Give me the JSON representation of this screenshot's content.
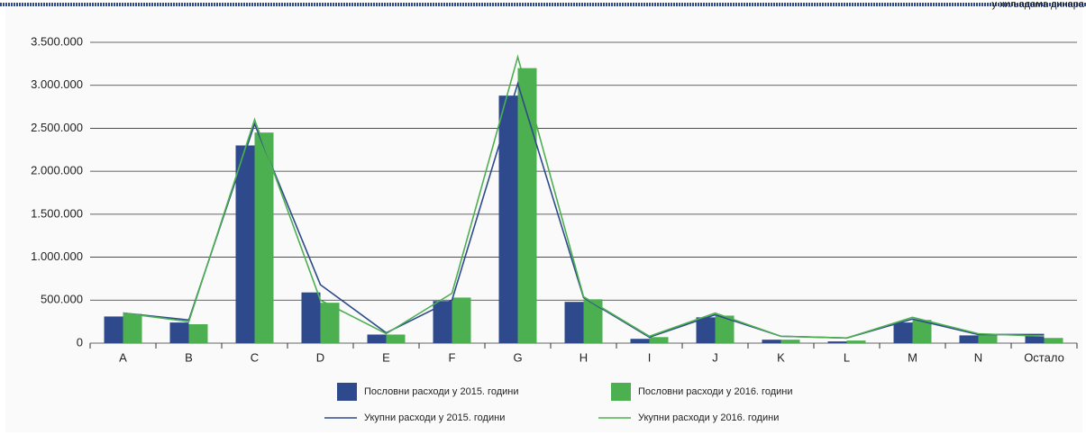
{
  "chart_data": {
    "type": "bar",
    "unit_note": "у хиљадама динара",
    "categories": [
      "A",
      "B",
      "C",
      "D",
      "E",
      "F",
      "G",
      "H",
      "I",
      "J",
      "K",
      "L",
      "M",
      "N",
      "Остало"
    ],
    "series": [
      {
        "name": "Пословни расходи у  2015. години",
        "type": "bar",
        "color": "#2e4a8c",
        "values": [
          310000,
          240000,
          2300000,
          590000,
          100000,
          490000,
          2880000,
          480000,
          50000,
          300000,
          40000,
          20000,
          240000,
          90000,
          90000
        ]
      },
      {
        "name": "Пословни расходи у  2016. години",
        "type": "bar",
        "color": "#4caf50",
        "values": [
          340000,
          220000,
          2450000,
          470000,
          100000,
          530000,
          3200000,
          510000,
          70000,
          320000,
          40000,
          30000,
          270000,
          110000,
          60000
        ]
      },
      {
        "name": "Укупни расходи у 2015. години",
        "type": "line",
        "color": "#2e4a8c",
        "values": [
          350000,
          270000,
          2550000,
          680000,
          120000,
          500000,
          3020000,
          530000,
          70000,
          330000,
          80000,
          60000,
          280000,
          100000,
          100000
        ]
      },
      {
        "name": "Укупни расходи у 2016. години",
        "type": "line",
        "color": "#4caf50",
        "values": [
          350000,
          250000,
          2600000,
          500000,
          110000,
          580000,
          3330000,
          540000,
          80000,
          350000,
          80000,
          60000,
          300000,
          110000,
          80000
        ]
      }
    ],
    "ylim": [
      0,
      3500000
    ],
    "yticks": [
      0,
      {
        "value": 500000,
        "label": "500.000"
      },
      {
        "value": 1000000,
        "label": "1.000.000"
      },
      {
        "value": 1500000,
        "label": "1.500.000"
      },
      {
        "value": 2000000,
        "label": "2.000.000"
      },
      {
        "value": 2500000,
        "label": "2.500.000"
      },
      {
        "value": 3000000,
        "label": "3.000.000"
      },
      {
        "value": 3500000,
        "label": "3.500.000"
      }
    ],
    "grid": true
  }
}
